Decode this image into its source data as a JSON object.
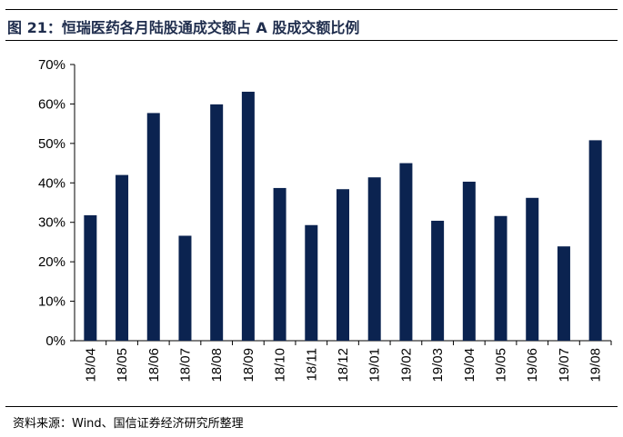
{
  "figure": {
    "title": "图 21：恒瑞医药各月陆股通成交额占 A 股成交额比例",
    "source": "资料来源：Wind、国信证券经济研究所整理"
  },
  "colors": {
    "bar": "#0b2350",
    "axis": "#000000"
  },
  "chart_data": {
    "type": "bar",
    "categories": [
      "18/04",
      "18/05",
      "18/06",
      "18/07",
      "18/08",
      "18/09",
      "18/10",
      "18/11",
      "18/12",
      "19/01",
      "19/02",
      "19/03",
      "19/04",
      "19/05",
      "19/06",
      "19/07",
      "19/08"
    ],
    "values": [
      31.8,
      42.0,
      57.7,
      26.6,
      59.9,
      63.1,
      38.7,
      29.3,
      38.4,
      41.4,
      45.0,
      30.4,
      40.3,
      31.6,
      36.2,
      23.9,
      50.8
    ],
    "unit": "%",
    "ylim": [
      0,
      70
    ],
    "yticks": [
      "0%",
      "10%",
      "20%",
      "30%",
      "40%",
      "50%",
      "60%",
      "70%"
    ],
    "grid": false,
    "legend": "none"
  }
}
